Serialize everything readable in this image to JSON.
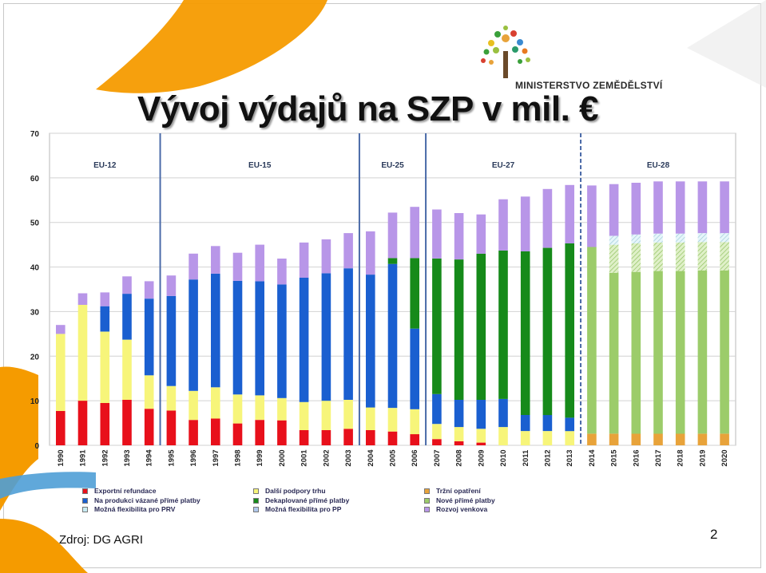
{
  "title": "Vývoj výdajů na SZP v mil. €",
  "logo_text": "MINISTERSTVO ZEMĚDĚLSTVÍ",
  "source": "Zdroj: DG AGRI",
  "page_number": "2",
  "colors": {
    "export": "#e8101b",
    "coupled": "#f7f57a",
    "flex_rdp": "#c8ecf4",
    "other_market": "#c7e9a8",
    "decoupled": "#168a1a",
    "flex_dp": "#b0c8ec",
    "market": "#e8a33a",
    "new_dp": "#9ccc6a",
    "rural": "#b896e8",
    "blue": "#1a5fd0"
  },
  "legend": [
    {
      "label": "Exportní refundace",
      "color": "#e8101b"
    },
    {
      "label": "Na produkci vázané přímé platby",
      "color": "#1a5fd0"
    },
    {
      "label": "Možná flexibilita pro PRV",
      "color": "#c8ecf4"
    },
    {
      "label": "Další podpory trhu",
      "color": "#f7f57a"
    },
    {
      "label": "Dekaplované přímé platby",
      "color": "#168a1a"
    },
    {
      "label": "Možná flexibilita pro PP",
      "color": "#b0c8ec"
    },
    {
      "label": "Tržní opatření",
      "color": "#e8a33a"
    },
    {
      "label": "Nové přímé platby",
      "color": "#9ccc6a"
    },
    {
      "label": "Rozvoj venkova",
      "color": "#b896e8"
    }
  ],
  "chart_data": {
    "type": "bar",
    "stacked": true,
    "title": "Vývoj výdajů na SZP v mil. €",
    "ylim": [
      0,
      70
    ],
    "yticks": [
      0,
      10,
      20,
      30,
      40,
      50,
      60,
      70
    ],
    "grid": true,
    "categories": [
      "1990",
      "1991",
      "1992",
      "1993",
      "1994",
      "1995",
      "1996",
      "1997",
      "1998",
      "1999",
      "2000",
      "2001",
      "2002",
      "2003",
      "2004",
      "2005",
      "2006",
      "2007",
      "2008",
      "2009",
      "2010",
      "2011",
      "2012",
      "2013",
      "2014",
      "2015",
      "2016",
      "2017",
      "2018",
      "2019",
      "2020"
    ],
    "eras": [
      {
        "label": "EU-12",
        "from": "1990",
        "to": "1994"
      },
      {
        "label": "EU-15",
        "from": "1995",
        "to": "2003"
      },
      {
        "label": "EU-25",
        "from": "2004",
        "to": "2006"
      },
      {
        "label": "EU-27",
        "from": "2007",
        "to": "2013"
      },
      {
        "label": "EU-28",
        "from": "2014",
        "to": "2020"
      }
    ],
    "series": [
      {
        "name": "Exportní refundace",
        "color": "#e8101b",
        "values": [
          7.7,
          10,
          9.5,
          10.2,
          8.2,
          7.8,
          5.7,
          6.0,
          4.9,
          5.7,
          5.6,
          3.4,
          3.4,
          3.7,
          3.4,
          3.1,
          2.5,
          1.4,
          0.9,
          0.6,
          0,
          0,
          0,
          0,
          0,
          0,
          0,
          0,
          0,
          0,
          0
        ]
      },
      {
        "name": "Další podpory trhu",
        "color": "#f7f57a",
        "values": [
          17.3,
          21.5,
          16,
          13.5,
          7.5,
          5.5,
          6.5,
          7,
          6.5,
          5.5,
          5,
          6.3,
          6.6,
          6.5,
          5.1,
          5.3,
          5.6,
          3.4,
          3.2,
          3.1,
          4.1,
          3.2,
          3.2,
          3.2,
          0,
          0,
          0,
          0,
          0,
          0,
          0
        ]
      },
      {
        "name": "Na produkci vázané přímé platby",
        "color": "#1a5fd0",
        "values": [
          0,
          0,
          5.7,
          10.3,
          17.2,
          20.2,
          25,
          25.5,
          25.5,
          25.6,
          25.5,
          27.9,
          28.6,
          29.5,
          29.8,
          32.3,
          18.1,
          6.7,
          6.1,
          6.5,
          6.3,
          3.6,
          3.6,
          3.0,
          0,
          0,
          0,
          0,
          0,
          0,
          0
        ]
      },
      {
        "name": "Dekaplované přímé platby",
        "color": "#168a1a",
        "values": [
          0,
          0,
          0,
          0,
          0,
          0,
          0,
          0,
          0,
          0,
          0,
          0,
          0,
          0,
          0,
          1.3,
          15.8,
          30.4,
          31.5,
          32.8,
          33.3,
          36.7,
          37.5,
          39.1,
          0,
          0,
          0,
          0,
          0,
          0,
          0
        ]
      },
      {
        "name": "Tržní opatření",
        "color": "#e8a33a",
        "values": [
          0,
          0,
          0,
          0,
          0,
          0,
          0,
          0,
          0,
          0,
          0,
          0,
          0,
          0,
          0,
          0,
          0,
          0,
          0,
          0,
          0,
          0,
          0,
          0,
          2.6,
          2.6,
          2.6,
          2.6,
          2.6,
          2.6,
          2.6
        ]
      },
      {
        "name": "Nové přímé platby",
        "color": "#9ccc6a",
        "values": [
          0,
          0,
          0,
          0,
          0,
          0,
          0,
          0,
          0,
          0,
          0,
          0,
          0,
          0,
          0,
          0,
          0,
          0,
          0,
          0,
          0,
          0,
          0,
          0,
          41.9,
          36.1,
          36.3,
          36.5,
          36.5,
          36.6,
          36.6
        ]
      },
      {
        "name": "Možná flexibilita pro PP",
        "color": "#c7e9a8",
        "pattern": true,
        "values": [
          0,
          0,
          0,
          0,
          0,
          0,
          0,
          0,
          0,
          0,
          0,
          0,
          0,
          0,
          0,
          0,
          0,
          0,
          0,
          0,
          0,
          0,
          0,
          0,
          0,
          6.3,
          6.4,
          6.4,
          6.4,
          6.4,
          6.4
        ]
      },
      {
        "name": "Možná flexibilita pro PRV",
        "color": "#c8ecf4",
        "pattern": true,
        "values": [
          0,
          0,
          0,
          0,
          0,
          0,
          0,
          0,
          0,
          0,
          0,
          0,
          0,
          0,
          0,
          0,
          0,
          0,
          0,
          0,
          0,
          0,
          0,
          0,
          0,
          2,
          2,
          2,
          2,
          2,
          2
        ]
      },
      {
        "name": "Rozvoj venkova",
        "color": "#b896e8",
        "values": [
          2,
          2.6,
          3.1,
          3.9,
          3.9,
          4.6,
          5.8,
          6.2,
          6.3,
          8.2,
          5.8,
          7.9,
          7.6,
          7.9,
          9.7,
          10.2,
          11.5,
          11,
          10.4,
          8.8,
          11.5,
          12.3,
          13.2,
          13.1,
          13.8,
          11.6,
          11.6,
          11.7,
          11.7,
          11.6,
          11.6
        ]
      }
    ]
  }
}
